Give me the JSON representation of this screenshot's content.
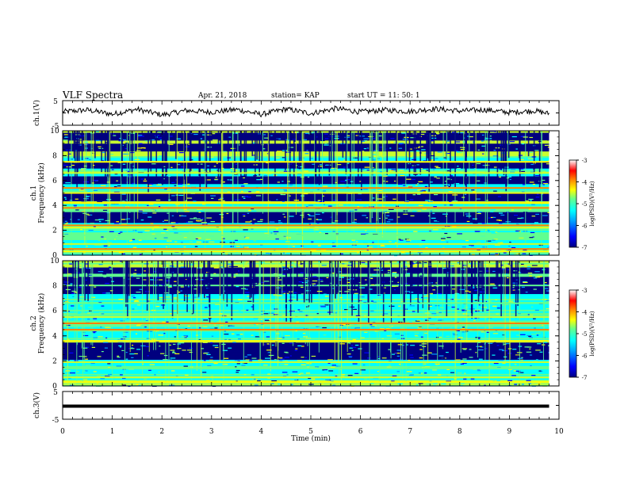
{
  "header": {
    "title": "VLF Spectra",
    "date": "Apr. 21, 2018",
    "station": "station= KAP",
    "start": "start UT =   11: 50: 1"
  },
  "colors": {
    "colormap": [
      "#00007f",
      "#0000ff",
      "#00a0ff",
      "#00ffff",
      "#60ff90",
      "#c8ff30",
      "#ffff00",
      "#ff8000",
      "#ff0000",
      "#ffffff"
    ],
    "line": "#000000"
  },
  "chart_data": [
    {
      "type": "line",
      "name": "ch1-waveform",
      "ylabel": "ch.1(V)",
      "ylim": [
        -5,
        5
      ],
      "yticks": [
        "5",
        "-5"
      ],
      "xlim": [
        0,
        10
      ],
      "description_values": {
        "mean": 0,
        "amplitude_approx": 1.5
      },
      "x": [
        0,
        0.5,
        1,
        1.5,
        2,
        2.5,
        3,
        3.5,
        4,
        4.5,
        5,
        5.5,
        6,
        6.5,
        7,
        7.5,
        8,
        8.5,
        9,
        9.5,
        9.8
      ],
      "y": [
        0.5,
        1.2,
        -0.5,
        1.5,
        -0.8,
        1.0,
        0.3,
        1.4,
        -0.6,
        1.6,
        -0.2,
        1.8,
        0.4,
        1.2,
        0.6,
        1.7,
        0.8,
        1.3,
        0.2,
        0.9,
        -0.3
      ]
    },
    {
      "type": "heatmap",
      "name": "ch1-spectrogram",
      "ylabel": "ch.1 Frequency (kHz)",
      "xlim": [
        0,
        10
      ],
      "ylim": [
        0,
        10
      ],
      "yticks": [
        "0",
        "2",
        "4",
        "6",
        "8",
        "10"
      ],
      "colorbar": {
        "label": "log(PSD)(V²/Hz)",
        "ticks": [
          "-3",
          "-4",
          "-5",
          "-6",
          "-7"
        ],
        "range": [
          -7,
          -3
        ]
      },
      "bands_khz": [
        {
          "f": 0.3,
          "level": -4.0
        },
        {
          "f": 0.5,
          "level": -3.5
        },
        {
          "f": 0.9,
          "level": -4.5
        },
        {
          "f": 1.6,
          "level": -5.0
        },
        {
          "f": 2.2,
          "level": -4.2
        },
        {
          "f": 2.4,
          "level": -3.8
        },
        {
          "f": 3.8,
          "level": -3.6
        },
        {
          "f": 4.2,
          "level": -4.3
        },
        {
          "f": 5.0,
          "level": -4.0
        },
        {
          "f": 5.4,
          "level": -3.8
        },
        {
          "f": 6.6,
          "level": -4.6
        },
        {
          "f": 7.5,
          "level": -4.2
        }
      ],
      "dark_bands_khz": [
        2.8,
        3.2,
        4.6,
        6.0,
        7.2,
        8.6,
        9.5
      ],
      "data_end_min": 9.8
    },
    {
      "type": "heatmap",
      "name": "ch2-spectrogram",
      "ylabel": "ch.2 Frequency (kHz)",
      "xlim": [
        0,
        10
      ],
      "ylim": [
        0,
        10
      ],
      "yticks": [
        "0",
        "2",
        "4",
        "6",
        "8",
        "10"
      ],
      "colorbar": {
        "label": "log(PSD)(V²/Hz)",
        "ticks": [
          "-3",
          "-4",
          "-5",
          "-6",
          "-7"
        ],
        "range": [
          -7,
          -3
        ]
      },
      "bands_khz": [
        {
          "f": 0.3,
          "level": -4.0
        },
        {
          "f": 0.7,
          "level": -4.4
        },
        {
          "f": 1.4,
          "level": -4.8
        },
        {
          "f": 1.9,
          "level": -4.5
        },
        {
          "f": 3.6,
          "level": -4.0
        },
        {
          "f": 4.5,
          "level": -3.8
        },
        {
          "f": 5.0,
          "level": -3.6
        },
        {
          "f": 5.5,
          "level": -4.4
        },
        {
          "f": 6.6,
          "level": -4.8
        }
      ],
      "dark_bands_khz": [
        2.4,
        2.7,
        3.2,
        7.6,
        8.4,
        9.2
      ],
      "data_end_min": 9.8
    },
    {
      "type": "line",
      "name": "ch3-waveform",
      "ylabel": "ch.3(V)",
      "ylim": [
        -5,
        5
      ],
      "yticks": [
        "5",
        "-5"
      ],
      "xlim": [
        0,
        10
      ],
      "x": [
        0,
        9.8
      ],
      "y": [
        0,
        0
      ]
    }
  ],
  "xaxis": {
    "label": "Time (min)",
    "ticks": [
      "0",
      "1",
      "2",
      "3",
      "4",
      "5",
      "6",
      "7",
      "8",
      "9",
      "10"
    ]
  }
}
